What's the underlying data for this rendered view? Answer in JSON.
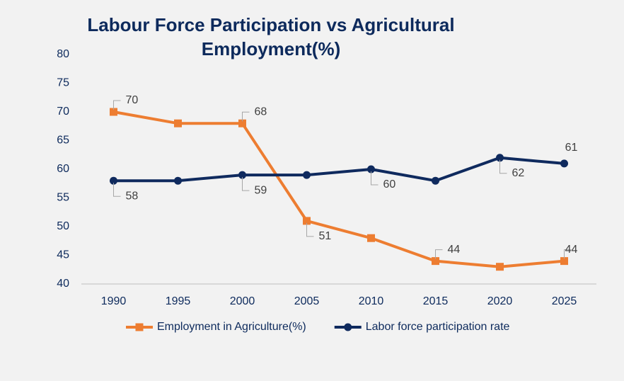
{
  "chart_data": {
    "type": "line",
    "title": "Labour Force Participation vs Agricultural Employment(%)",
    "categories": [
      "1990",
      "1995",
      "2000",
      "2005",
      "2010",
      "2015",
      "2020",
      "2025"
    ],
    "series": [
      {
        "name": "Employment in Agriculture(%)",
        "color": "#ed7d31",
        "marker": "square",
        "values": [
          70,
          68,
          68,
          51,
          48,
          44,
          43,
          44
        ],
        "data_labels": [
          0,
          2,
          3,
          5,
          7
        ]
      },
      {
        "name": "Labor force participation rate",
        "color": "#0f2a5e",
        "marker": "circle",
        "values": [
          58,
          58,
          59,
          59,
          60,
          58,
          62,
          61
        ],
        "data_labels": [
          0,
          2,
          4,
          6,
          7
        ]
      }
    ],
    "ylim": [
      40,
      80
    ],
    "yticks": [
      40,
      45,
      50,
      55,
      60,
      65,
      70,
      75,
      80
    ],
    "grid": false,
    "legend": "bottom"
  }
}
